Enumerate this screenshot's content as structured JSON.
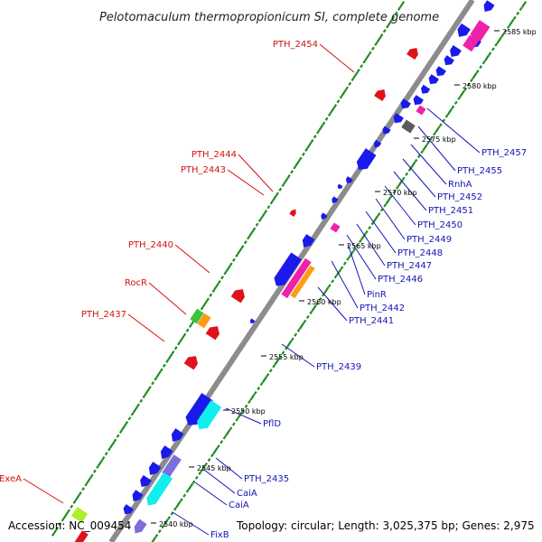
{
  "title": "Pelotomaculum thermopropionicum SI, complete genome",
  "accession": "Accession: NC_009454",
  "summary": "Topology: circular; Length: 3,025,375 bp; Genes: 2,975",
  "scale": [
    {
      "label": "2585 kbp",
      "kbp": 2585
    },
    {
      "label": "2580 kbp",
      "kbp": 2580
    },
    {
      "label": "2575 kbp",
      "kbp": 2575
    },
    {
      "label": "2570 kbp",
      "kbp": 2570
    },
    {
      "label": "2565 kbp",
      "kbp": 2565
    },
    {
      "label": "2560 kbp",
      "kbp": 2560
    },
    {
      "label": "2555 kbp",
      "kbp": 2555
    },
    {
      "label": "2550 kbp",
      "kbp": 2550
    },
    {
      "label": "2545 kbp",
      "kbp": 2545
    },
    {
      "label": "2540 kbp",
      "kbp": 2540
    }
  ],
  "labels_left": [
    "PTH_2454",
    "PTH_2444",
    "PTH_2443",
    "PTH_2440",
    "RocR",
    "PTH_2437",
    "ExeA"
  ],
  "labels_right": [
    "PTH_2457",
    "PTH_2455",
    "RnhA",
    "PTH_2452",
    "PTH_2451",
    "PTH_2450",
    "PTH_2449",
    "PTH_2448",
    "PTH_2447",
    "PTH_2446",
    "PinR",
    "PTH_2442",
    "PTH_2441",
    "PTH_2439",
    "PflD",
    "PTH_2435",
    "CaiA",
    "CaiA",
    "FixB"
  ],
  "colors": {
    "backbone": "#8c8c8c",
    "forward_cds": "#e0121b",
    "reverse_cds": "#1a1aec",
    "cyan_category": "#11eeee",
    "magenta_category": "#ee22aa",
    "orange_category": "#ff9b14",
    "green_category": "#3cc43c",
    "lime_category": "#aaf02a",
    "lavender_category": "#7b6fdc",
    "grey_category": "#5c5c5c",
    "gc_skew": "#1f8c1f",
    "left_label_color": "#d41010",
    "right_label_color": "#1414b4"
  }
}
